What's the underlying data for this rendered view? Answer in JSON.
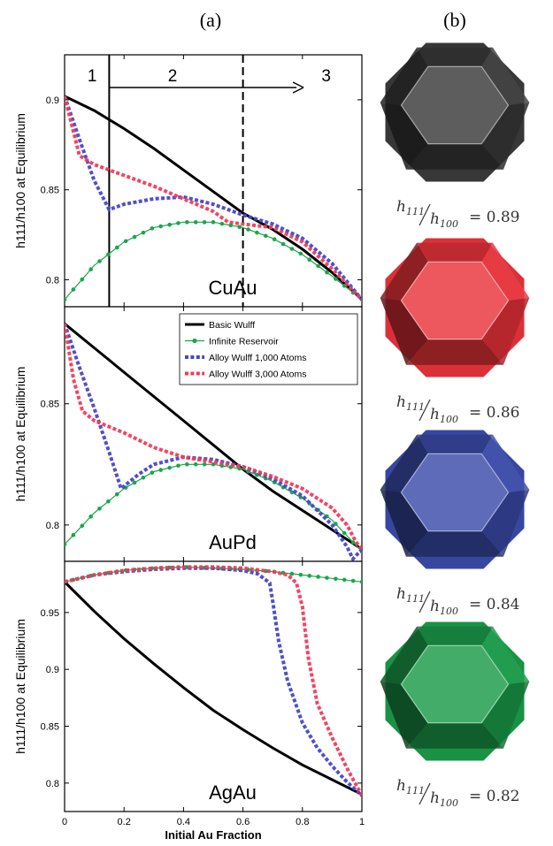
{
  "labels": {
    "panel_a": "(a)",
    "panel_b": "(b)"
  },
  "chart_data": [
    {
      "type": "line",
      "title": "CuAu",
      "xlabel": "",
      "ylabel": "h111/h100 at Equilibrium",
      "xlim": [
        0,
        1
      ],
      "ylim": [
        0.785,
        0.925
      ],
      "yticks": [
        0.8,
        0.85,
        0.9
      ],
      "xticks": [],
      "regions": [
        "1",
        "2",
        "3"
      ],
      "region_lines": [
        0.15,
        0.6
      ],
      "series": [
        {
          "name": "Basic Wulff",
          "color": "#000000",
          "style": "solid",
          "x": [
            0,
            0.1,
            0.2,
            0.3,
            0.4,
            0.5,
            0.6,
            0.7,
            0.8,
            0.9,
            1.0
          ],
          "y": [
            0.902,
            0.894,
            0.884,
            0.873,
            0.861,
            0.849,
            0.837,
            0.828,
            0.817,
            0.804,
            0.789
          ]
        },
        {
          "name": "Infinite Reservoir",
          "color": "#1aa64b",
          "style": "dots",
          "x": [
            0,
            0.1,
            0.2,
            0.3,
            0.4,
            0.5,
            0.6,
            0.7,
            0.8,
            0.9,
            1.0
          ],
          "y": [
            0.789,
            0.808,
            0.821,
            0.829,
            0.832,
            0.832,
            0.829,
            0.823,
            0.814,
            0.802,
            0.789
          ]
        },
        {
          "name": "Alloy Wulff 1,000 Atoms",
          "color": "#4747c9",
          "style": "dash",
          "x": [
            0,
            0.05,
            0.1,
            0.15,
            0.2,
            0.3,
            0.4,
            0.5,
            0.6,
            0.7,
            0.8,
            0.9,
            1.0
          ],
          "y": [
            0.902,
            0.878,
            0.855,
            0.839,
            0.842,
            0.845,
            0.846,
            0.842,
            0.836,
            0.831,
            0.823,
            0.809,
            0.789
          ]
        },
        {
          "name": "Alloy Wulff 3,000 Atoms",
          "color": "#f03b5a",
          "style": "dash",
          "x": [
            0,
            0.05,
            0.1,
            0.2,
            0.3,
            0.4,
            0.5,
            0.55,
            0.6,
            0.7,
            0.8,
            0.9,
            1.0
          ],
          "y": [
            0.902,
            0.869,
            0.864,
            0.858,
            0.852,
            0.845,
            0.838,
            0.832,
            0.831,
            0.829,
            0.821,
            0.806,
            0.789
          ]
        }
      ]
    },
    {
      "type": "line",
      "title": "AuPd",
      "xlabel": "",
      "ylabel": "h111/h100 at Equilibrium",
      "xlim": [
        0,
        1
      ],
      "ylim": [
        0.785,
        0.89
      ],
      "yticks": [
        0.8,
        0.85
      ],
      "xticks": [],
      "legend": {
        "placement": "top-right"
      },
      "series": [
        {
          "name": "Basic Wulff",
          "color": "#000000",
          "style": "solid",
          "x": [
            0,
            0.1,
            0.2,
            0.3,
            0.4,
            0.5,
            0.6,
            0.7,
            0.8,
            0.9,
            1.0
          ],
          "y": [
            0.883,
            0.873,
            0.863,
            0.853,
            0.843,
            0.833,
            0.823,
            0.814,
            0.806,
            0.798,
            0.79
          ]
        },
        {
          "name": "Infinite Reservoir",
          "color": "#1aa64b",
          "style": "dots",
          "x": [
            0,
            0.1,
            0.2,
            0.3,
            0.4,
            0.5,
            0.6,
            0.7,
            0.8,
            0.9,
            1.0
          ],
          "y": [
            0.792,
            0.805,
            0.815,
            0.822,
            0.825,
            0.825,
            0.823,
            0.818,
            0.811,
            0.802,
            0.789
          ]
        },
        {
          "name": "Alloy Wulff 1,000 Atoms",
          "color": "#4747c9",
          "style": "dash",
          "x": [
            0,
            0.05,
            0.1,
            0.15,
            0.19,
            0.25,
            0.3,
            0.4,
            0.5,
            0.6,
            0.7,
            0.8,
            0.85,
            0.9,
            0.95,
            0.97,
            1.0
          ],
          "y": [
            0.883,
            0.865,
            0.848,
            0.83,
            0.815,
            0.821,
            0.825,
            0.828,
            0.827,
            0.824,
            0.819,
            0.812,
            0.806,
            0.8,
            0.791,
            0.786,
            0.79
          ]
        },
        {
          "name": "Alloy Wulff 3,000 Atoms",
          "color": "#f03b5a",
          "style": "dash",
          "x": [
            0,
            0.03,
            0.06,
            0.1,
            0.2,
            0.3,
            0.4,
            0.5,
            0.6,
            0.7,
            0.8,
            0.85,
            0.9,
            0.95,
            0.98,
            1.0
          ],
          "y": [
            0.883,
            0.86,
            0.847,
            0.843,
            0.838,
            0.832,
            0.828,
            0.826,
            0.824,
            0.82,
            0.815,
            0.811,
            0.807,
            0.8,
            0.793,
            0.79
          ]
        }
      ]
    },
    {
      "type": "line",
      "title": "AgAu",
      "xlabel": "Initial Au Fraction",
      "ylabel": "h111/h100 at Equilibrium",
      "xlim": [
        0,
        1
      ],
      "ylim": [
        0.775,
        0.995
      ],
      "yticks": [
        0.8,
        0.85,
        0.9,
        0.95
      ],
      "xticks": [
        0,
        0.2,
        0.4,
        0.6,
        0.8,
        1
      ],
      "series": [
        {
          "name": "Basic Wulff",
          "color": "#000000",
          "style": "solid",
          "x": [
            0,
            0.1,
            0.2,
            0.3,
            0.4,
            0.5,
            0.6,
            0.7,
            0.8,
            0.9,
            1.0
          ],
          "y": [
            0.977,
            0.951,
            0.927,
            0.905,
            0.884,
            0.864,
            0.847,
            0.831,
            0.816,
            0.803,
            0.79
          ]
        },
        {
          "name": "Infinite Reservoir",
          "color": "#1aa64b",
          "style": "dots",
          "x": [
            0,
            0.1,
            0.2,
            0.3,
            0.4,
            0.5,
            0.6,
            0.7,
            0.8,
            0.9,
            1.0
          ],
          "y": [
            0.977,
            0.983,
            0.987,
            0.989,
            0.99,
            0.989,
            0.988,
            0.986,
            0.983,
            0.98,
            0.977
          ]
        },
        {
          "name": "Alloy Wulff 1,000 Atoms",
          "color": "#4747c9",
          "style": "dash",
          "x": [
            0,
            0.1,
            0.2,
            0.3,
            0.4,
            0.5,
            0.6,
            0.65,
            0.69,
            0.7,
            0.72,
            0.75,
            0.8,
            0.85,
            0.9,
            0.95,
            1.0
          ],
          "y": [
            0.977,
            0.983,
            0.986,
            0.988,
            0.989,
            0.989,
            0.987,
            0.984,
            0.976,
            0.96,
            0.925,
            0.89,
            0.853,
            0.831,
            0.815,
            0.801,
            0.789
          ]
        },
        {
          "name": "Alloy Wulff 3,000 Atoms",
          "color": "#f03b5a",
          "style": "dash",
          "x": [
            0,
            0.1,
            0.2,
            0.3,
            0.4,
            0.5,
            0.6,
            0.7,
            0.75,
            0.78,
            0.8,
            0.82,
            0.85,
            0.9,
            0.95,
            1.0
          ],
          "y": [
            0.977,
            0.983,
            0.987,
            0.989,
            0.99,
            0.99,
            0.989,
            0.986,
            0.983,
            0.976,
            0.955,
            0.91,
            0.87,
            0.84,
            0.813,
            0.789
          ]
        }
      ]
    }
  ],
  "shapes": [
    {
      "color": "#3a3a3a",
      "ratio_num": "h",
      "ratio_num_sub": "111",
      "ratio_den": "h",
      "ratio_den_sub": "100",
      "value": "= 0.89"
    },
    {
      "color": "#e8333b",
      "ratio_num": "h",
      "ratio_num_sub": "111",
      "ratio_den": "h",
      "ratio_den_sub": "100",
      "value": "= 0.86"
    },
    {
      "color": "#3a4ba8",
      "ratio_num": "h",
      "ratio_num_sub": "111",
      "ratio_den": "h",
      "ratio_den_sub": "100",
      "value": "= 0.84"
    },
    {
      "color": "#1a9a48",
      "ratio_num": "h",
      "ratio_num_sub": "111",
      "ratio_den": "h",
      "ratio_den_sub": "100",
      "value": "= 0.82"
    }
  ]
}
